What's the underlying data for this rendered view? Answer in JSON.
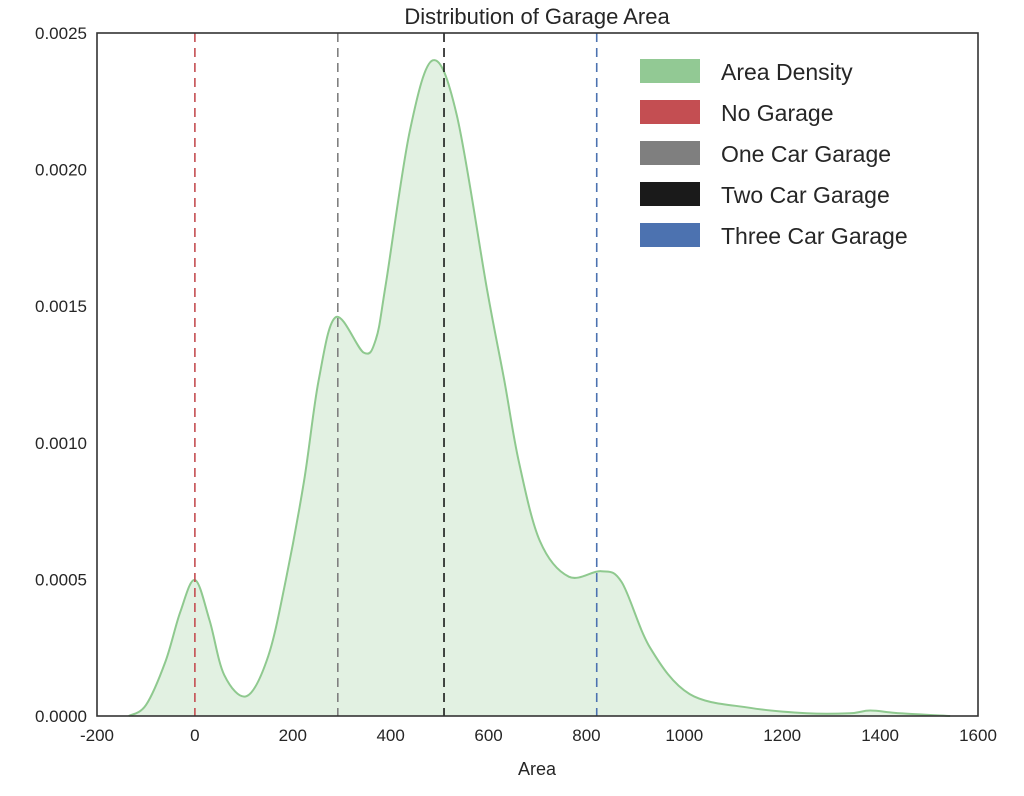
{
  "chart_data": {
    "type": "area",
    "title": "Distribution of Garage Area",
    "xlabel": "Area",
    "ylabel": "",
    "xlim": [
      -200,
      1600
    ],
    "ylim": [
      0,
      0.0025
    ],
    "xticks": [
      "-200",
      "0",
      "200",
      "400",
      "600",
      "800",
      "1000",
      "1200",
      "1400",
      "1600"
    ],
    "xtick_values": [
      -200,
      0,
      200,
      400,
      600,
      800,
      1000,
      1200,
      1400,
      1600
    ],
    "yticks": [
      "0.0000",
      "0.0005",
      "0.0010",
      "0.0015",
      "0.0020",
      "0.0025"
    ],
    "ytick_values": [
      0,
      0.0005,
      0.001,
      0.0015,
      0.002,
      0.0025
    ],
    "grid": false,
    "legend_position": "top-right",
    "series": [
      {
        "name": "Area Density",
        "color": "#8fc98f",
        "x": [
          -135,
          -100,
          -60,
          -30,
          0,
          30,
          60,
          106,
          150,
          186,
          223,
          253,
          288,
          345,
          370,
          390,
          439,
          486,
          535,
          597,
          632,
          662,
          705,
          764,
          830,
          872,
          930,
          1011,
          1134,
          1250,
          1338,
          1380,
          1440,
          1543
        ],
        "y": [
          0,
          4e-05,
          0.0002,
          0.00038,
          0.000498,
          0.00035,
          0.00015,
          7.3e-05,
          0.00022,
          0.0005,
          0.00086,
          0.00123,
          0.00146,
          0.00133,
          0.00138,
          0.00158,
          0.00214,
          0.0024,
          0.0022,
          0.00156,
          0.00123,
          0.00093,
          0.00064,
          0.00051,
          0.00053,
          0.00049,
          0.00025,
          8e-05,
          3e-05,
          1e-05,
          1e-05,
          2e-05,
          1e-05,
          0
        ]
      }
    ],
    "vlines": [
      {
        "name": "No Garage",
        "x": 0,
        "color": "#c44e52"
      },
      {
        "name": "One Car Garage",
        "x": 292,
        "color": "#7f7f7f"
      },
      {
        "name": "Two Car Garage",
        "x": 509,
        "color": "#1a1a1a"
      },
      {
        "name": "Three Car Garage",
        "x": 821,
        "color": "#4c72b0"
      }
    ],
    "legend": [
      {
        "label": "Area Density",
        "color": "#92c994"
      },
      {
        "label": "No Garage",
        "color": "#c44e52"
      },
      {
        "label": "One Car Garage",
        "color": "#7f7f7f"
      },
      {
        "label": "Two Car Garage",
        "color": "#1a1a1a"
      },
      {
        "label": "Three Car Garage",
        "color": "#4c72b0"
      }
    ]
  }
}
